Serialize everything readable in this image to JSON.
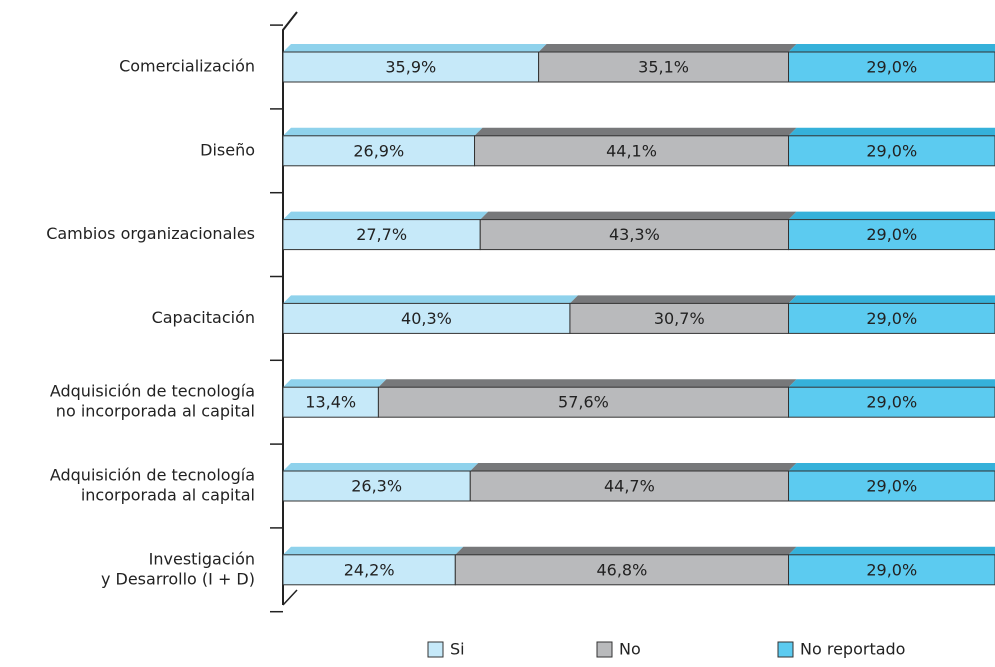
{
  "chart_data": {
    "type": "stacked-bar",
    "categories": [
      [
        "Comercialización"
      ],
      [
        "Diseño"
      ],
      [
        "Cambios organizacionales"
      ],
      [
        "Capacitación"
      ],
      [
        "Adquisición de tecnología",
        "no incorporada al capital"
      ],
      [
        "Adquisición de tecnología",
        "incorporada al capital"
      ],
      [
        "Investigación",
        "y Desarrollo (I + D)"
      ]
    ],
    "series": [
      {
        "name": "Si",
        "color": "#c6e9f9",
        "top_color": "#8fd2ec",
        "values": [
          35.9,
          26.9,
          27.7,
          40.3,
          13.4,
          26.3,
          24.2
        ],
        "value_labels": [
          "35,9%",
          "26,9%",
          "27,7%",
          "40,3%",
          "13,4%",
          "26,3%",
          "24,2%"
        ]
      },
      {
        "name": "No",
        "color": "#b9babc",
        "top_color": "#77787a",
        "values": [
          35.1,
          44.1,
          43.3,
          30.7,
          57.6,
          44.7,
          46.8
        ],
        "value_labels": [
          "35,1%",
          "44,1%",
          "43,3%",
          "30,7%",
          "57,6%",
          "44,7%",
          "46,8%"
        ]
      },
      {
        "name": "No reportado",
        "color": "#5ccbf0",
        "top_color": "#35b1da",
        "values": [
          29.0,
          29.0,
          29.0,
          29.0,
          29.0,
          29.0,
          29.0
        ],
        "value_labels": [
          "29,0%",
          "29,0%",
          "29,0%",
          "29,0%",
          "29,0%",
          "29,0%",
          "29,0%"
        ]
      }
    ]
  }
}
